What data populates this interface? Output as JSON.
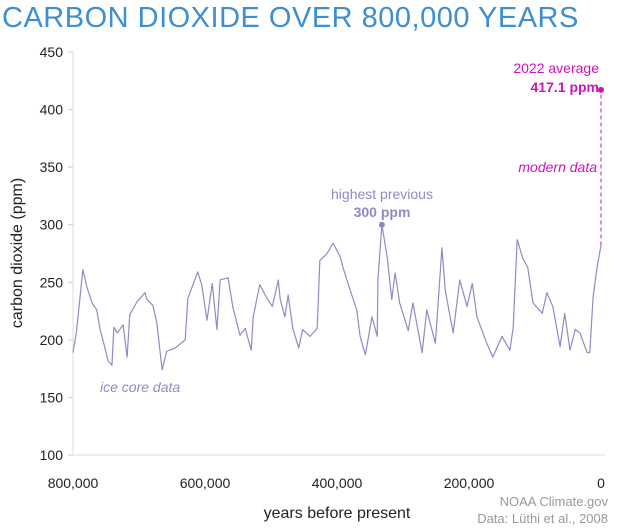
{
  "chart_data": {
    "type": "line",
    "title": "CARBON DIOXIDE OVER 800,000 YEARS",
    "xlabel": "years before present",
    "ylabel": "carbon dioxide (ppm)",
    "xlim": [
      800000,
      0
    ],
    "ylim": [
      100,
      450
    ],
    "x_ticks": [
      "800,000",
      "600,000",
      "400,000",
      "200,000",
      "0"
    ],
    "y_ticks": [
      "100",
      "150",
      "200",
      "250",
      "300",
      "350",
      "400",
      "450"
    ],
    "grid": false,
    "colors": {
      "ice_core": "#8e8bc7",
      "modern": "#cc14b8",
      "title": "#3d8fd1"
    },
    "series": [
      {
        "name": "ice core data",
        "x": [
          800000,
          795000,
          785000,
          779000,
          771000,
          764000,
          759000,
          752000,
          747000,
          741000,
          738000,
          733000,
          724000,
          718000,
          714000,
          703000,
          691000,
          688000,
          679000,
          673000,
          665000,
          658000,
          645000,
          630000,
          626000,
          611000,
          605000,
          597000,
          589000,
          582000,
          577000,
          565000,
          558000,
          547000,
          539000,
          530000,
          527000,
          517000,
          509000,
          498000,
          489000,
          486000,
          479000,
          474000,
          467000,
          458000,
          452000,
          441000,
          430000,
          426000,
          415000,
          406000,
          395000,
          391000,
          380000,
          370000,
          365000,
          357000,
          347000,
          339000,
          338000,
          332000,
          324000,
          317000,
          312000,
          305000,
          292000,
          285000,
          271000,
          264000,
          251000,
          241000,
          236000,
          224000,
          214000,
          203000,
          195000,
          188000,
          173000,
          164000,
          150000,
          138000,
          133000,
          127000,
          118000,
          111000,
          103000,
          89000,
          82000,
          73000,
          62000,
          55000,
          47000,
          39000,
          32000,
          21000,
          17000,
          12000,
          6000,
          0
        ],
        "y": [
          189,
          206,
          261,
          246,
          232,
          226,
          209,
          194,
          182,
          178,
          211,
          206,
          213,
          185,
          222,
          233,
          241,
          235,
          230,
          215,
          174,
          190,
          193,
          200,
          236,
          259,
          248,
          217,
          249,
          209,
          252,
          254,
          229,
          204,
          210,
          191,
          220,
          248,
          239,
          229,
          252,
          235,
          220,
          239,
          210,
          193,
          209,
          203,
          210,
          269,
          275,
          284,
          272,
          263,
          243,
          226,
          203,
          187,
          220,
          203,
          252,
          300,
          272,
          235,
          258,
          232,
          208,
          232,
          189,
          226,
          197,
          280,
          243,
          206,
          252,
          229,
          249,
          220,
          197,
          185,
          203,
          191,
          211,
          287,
          270,
          263,
          232,
          223,
          241,
          229,
          194,
          223,
          191,
          209,
          206,
          189,
          189,
          237,
          263,
          282
        ]
      },
      {
        "name": "modern data",
        "x": [
          0,
          0
        ],
        "y": [
          282,
          417.1
        ]
      }
    ],
    "annotations": {
      "ice_core_label": "ice core data",
      "modern_label": "modern data",
      "highest_previous_label": "highest previous",
      "highest_previous_value": "300 ppm",
      "highest_previous_point": {
        "x": 332000,
        "y": 300
      },
      "current_label": "2022 average",
      "current_value": "417.1 ppm",
      "current_point": {
        "x": 0,
        "y": 417.1
      }
    }
  },
  "credits": {
    "line1": "NOAA Climate.gov",
    "line2": "Data: Lüthi et al., 2008"
  }
}
